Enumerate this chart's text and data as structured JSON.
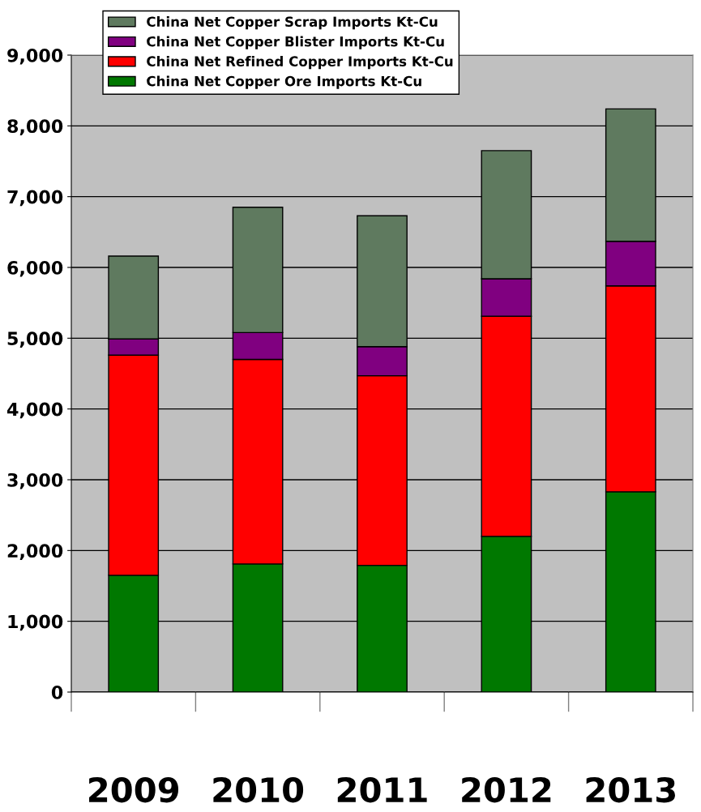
{
  "chart_data": {
    "type": "bar",
    "stacked": true,
    "categories": [
      "2009",
      "2010",
      "2011",
      "2012",
      "2013"
    ],
    "series": [
      {
        "name": "China Net Copper Ore Imports Kt-Cu",
        "color": "#007800",
        "values": [
          1650,
          1810,
          1790,
          2200,
          2830
        ]
      },
      {
        "name": "China Net Refined Copper Imports Kt-Cu",
        "color": "#ff0000",
        "values": [
          3110,
          2890,
          2680,
          3110,
          2910
        ]
      },
      {
        "name": "China Net Copper Blister Imports Kt-Cu",
        "color": "#800080",
        "values": [
          230,
          380,
          410,
          530,
          630
        ]
      },
      {
        "name": "China Net Copper Scrap Imports Kt-Cu",
        "color": "#5f7a5f",
        "values": [
          1170,
          1770,
          1850,
          1810,
          1870
        ]
      }
    ],
    "ylim": [
      0,
      9000
    ],
    "yticks": [
      0,
      {
        "value": 1000,
        "label": "1,000"
      },
      {
        "value": 2000,
        "label": "2,000"
      },
      {
        "value": 3000,
        "label": "3,000"
      },
      {
        "value": 4000,
        "label": "4,000"
      },
      {
        "value": 5000,
        "label": "5,000"
      },
      {
        "value": 6000,
        "label": "6,000"
      },
      {
        "value": 7000,
        "label": "7,000"
      },
      {
        "value": 8000,
        "label": "8,000"
      },
      {
        "value": 9000,
        "label": "9,000"
      }
    ],
    "grid": "y",
    "legend": "top left"
  }
}
